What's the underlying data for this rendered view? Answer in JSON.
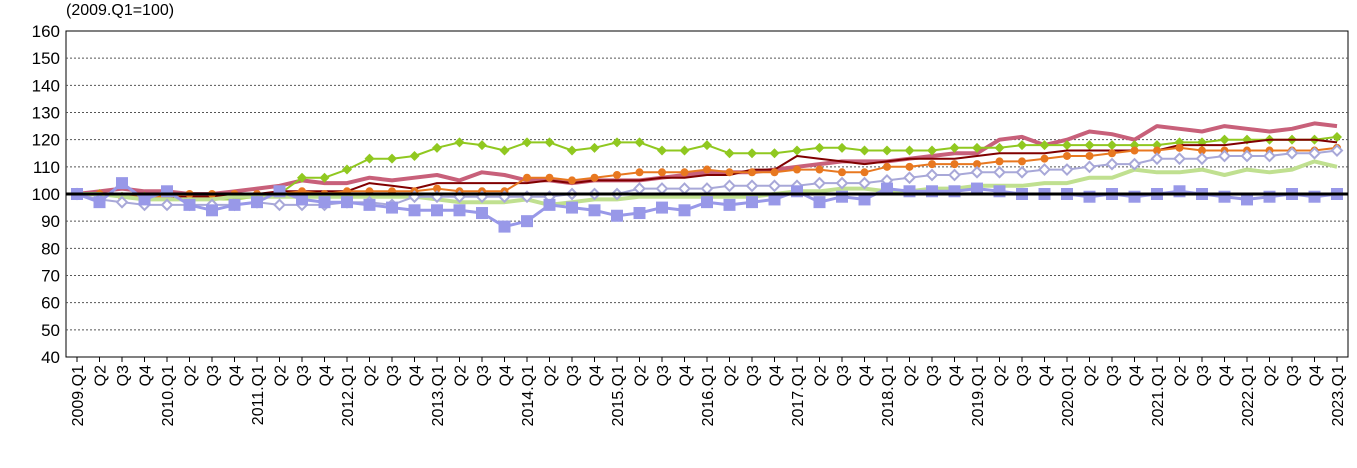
{
  "chart_data": {
    "type": "line",
    "unit_label": "(2009.Q1=100)",
    "ylim": [
      40,
      160
    ],
    "yticks": [
      40,
      50,
      60,
      70,
      80,
      90,
      100,
      110,
      120,
      130,
      140,
      150,
      160
    ],
    "grid": true,
    "x": [
      "2009.Q1",
      "Q2",
      "Q3",
      "Q4",
      "2010.Q1",
      "Q2",
      "Q3",
      "Q4",
      "2011.Q1",
      "Q2",
      "Q3",
      "Q4",
      "2012.Q1",
      "Q2",
      "Q3",
      "Q4",
      "2013.Q1",
      "Q2",
      "Q3",
      "Q4",
      "2014.Q1",
      "Q2",
      "Q3",
      "Q4",
      "2015.Q1",
      "Q2",
      "Q3",
      "Q4",
      "2016.Q1",
      "Q2",
      "Q3",
      "Q4",
      "2017.Q1",
      "Q2",
      "Q3",
      "Q4",
      "2018.Q1",
      "Q2",
      "Q3",
      "Q4",
      "2019.Q1",
      "Q2",
      "Q3",
      "Q4",
      "2020.Q1",
      "Q2",
      "Q3",
      "Q4",
      "2021.Q1",
      "Q2",
      "Q3",
      "Q4",
      "2022.Q1",
      "Q2",
      "Q3",
      "Q4",
      "2023.Q1"
    ],
    "reference_line": 100,
    "series": [
      {
        "color": "#c8607a",
        "marker": "none",
        "width": 4,
        "values": [
          100,
          101,
          102,
          101,
          101,
          100,
          100,
          101,
          102,
          103,
          105,
          104,
          104,
          106,
          105,
          106,
          107,
          105,
          108,
          107,
          105,
          105,
          104,
          105,
          105,
          105,
          106,
          107,
          108,
          108,
          108,
          109,
          110,
          111,
          112,
          112,
          112,
          113,
          114,
          115,
          115,
          120,
          121,
          118,
          120,
          123,
          122,
          120,
          125,
          124,
          123,
          125,
          124,
          123,
          124,
          126,
          125
        ]
      },
      {
        "color": "#90c820",
        "marker": "diamond",
        "width": 2,
        "values": [
          100,
          100,
          99,
          99,
          99,
          98,
          98,
          98,
          99,
          100,
          106,
          106,
          109,
          113,
          113,
          114,
          117,
          119,
          118,
          116,
          119,
          119,
          116,
          117,
          119,
          119,
          116,
          116,
          118,
          115,
          115,
          115,
          116,
          117,
          117,
          116,
          116,
          116,
          116,
          117,
          117,
          117,
          118,
          118,
          118,
          118,
          118,
          118,
          118,
          119,
          119,
          120,
          120,
          120,
          120,
          120,
          121
        ]
      },
      {
        "color": "#800000",
        "marker": "none",
        "width": 2,
        "values": [
          100,
          100,
          99,
          99,
          99,
          99,
          99,
          100,
          100,
          101,
          101,
          101,
          101,
          104,
          103,
          102,
          104,
          104,
          104,
          104,
          104,
          105,
          104,
          105,
          105,
          105,
          106,
          106,
          107,
          107,
          109,
          109,
          114,
          113,
          112,
          111,
          112,
          113,
          113,
          113,
          114,
          115,
          115,
          115,
          116,
          116,
          116,
          116,
          116,
          118,
          118,
          118,
          119,
          120,
          120,
          120,
          119
        ]
      },
      {
        "color": "#e87820",
        "marker": "circle",
        "width": 2,
        "values": [
          100,
          100,
          99,
          99,
          99,
          100,
          100,
          100,
          100,
          100,
          101,
          100,
          101,
          101,
          101,
          101,
          102,
          101,
          101,
          101,
          106,
          106,
          105,
          106,
          107,
          108,
          108,
          108,
          109,
          108,
          108,
          108,
          109,
          109,
          108,
          108,
          110,
          110,
          111,
          111,
          111,
          112,
          112,
          113,
          114,
          114,
          115,
          116,
          116,
          117,
          116,
          116,
          116,
          116,
          116,
          116,
          117
        ]
      },
      {
        "color": "#c0e090",
        "marker": "none",
        "width": 4,
        "values": [
          100,
          100,
          99,
          98,
          98,
          98,
          98,
          99,
          99,
          99,
          99,
          99,
          99,
          99,
          99,
          99,
          98,
          97,
          97,
          97,
          98,
          96,
          97,
          98,
          98,
          99,
          99,
          99,
          99,
          99,
          99,
          100,
          101,
          101,
          102,
          102,
          101,
          101,
          102,
          102,
          103,
          103,
          103,
          104,
          104,
          106,
          106,
          109,
          108,
          108,
          109,
          107,
          109,
          108,
          109,
          112,
          110
        ]
      },
      {
        "color": "#a8a8d8",
        "marker": "diamond-hollow",
        "width": 2,
        "values": [
          100,
          98,
          97,
          96,
          96,
          96,
          96,
          96,
          97,
          96,
          96,
          96,
          97,
          97,
          96,
          99,
          99,
          99,
          99,
          99,
          99,
          99,
          100,
          100,
          100,
          102,
          102,
          102,
          102,
          103,
          103,
          103,
          103,
          104,
          104,
          104,
          105,
          106,
          107,
          107,
          108,
          108,
          108,
          109,
          109,
          110,
          111,
          111,
          113,
          113,
          113,
          114,
          114,
          114,
          115,
          115,
          116
        ]
      },
      {
        "color": "#9898e8",
        "marker": "square",
        "width": 3,
        "values": [
          100,
          97,
          104,
          98,
          101,
          96,
          94,
          96,
          97,
          101,
          98,
          97,
          97,
          96,
          95,
          94,
          94,
          94,
          93,
          88,
          90,
          96,
          95,
          94,
          92,
          93,
          95,
          94,
          97,
          96,
          97,
          98,
          101,
          97,
          99,
          98,
          102,
          101,
          101,
          101,
          102,
          101,
          100,
          100,
          100,
          99,
          100,
          99,
          100,
          101,
          100,
          99,
          98,
          99,
          100,
          99,
          100
        ]
      }
    ]
  }
}
